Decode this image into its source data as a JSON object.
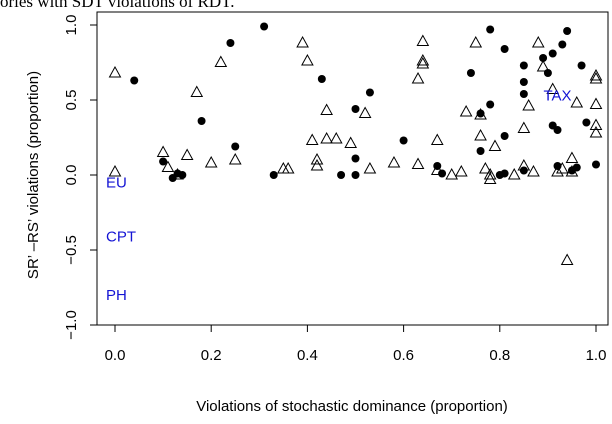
{
  "caption": "ories with SDT violations of RDT.",
  "chart_data": {
    "type": "scatter",
    "title": "",
    "xlabel": "Violations of stochastic dominance (proportion)",
    "ylabel": "SR’ –RS’ violations (proportion)",
    "xlim": [
      0,
      1
    ],
    "ylim": [
      -1,
      1
    ],
    "x_ticks": [
      "0.0",
      "0.2",
      "0.4",
      "0.6",
      "0.8",
      "1.0"
    ],
    "y_ticks": [
      "−1.0",
      "−0.5",
      "0.0",
      "0.5",
      "1.0"
    ],
    "grid": false,
    "legend": "none",
    "model_labels": [
      {
        "label": "TAX",
        "x": 0.92,
        "y": 0.53
      },
      {
        "label": "EU",
        "x": 0.02,
        "y": -0.05
      },
      {
        "label": "CPT",
        "x": 0.02,
        "y": -0.41
      },
      {
        "label": "PH",
        "x": 0.02,
        "y": -0.8
      }
    ],
    "series": [
      {
        "marker": "filled-circle",
        "points": [
          [
            0.04,
            0.63
          ],
          [
            0.1,
            0.09
          ],
          [
            0.12,
            -0.02
          ],
          [
            0.13,
            0.01
          ],
          [
            0.14,
            0.0
          ],
          [
            0.18,
            0.36
          ],
          [
            0.24,
            0.88
          ],
          [
            0.25,
            0.19
          ],
          [
            0.31,
            0.99
          ],
          [
            0.33,
            0.0
          ],
          [
            0.43,
            0.64
          ],
          [
            0.47,
            0.0
          ],
          [
            0.5,
            0.11
          ],
          [
            0.5,
            0.44
          ],
          [
            0.5,
            0.0
          ],
          [
            0.53,
            0.55
          ],
          [
            0.6,
            0.23
          ],
          [
            0.67,
            0.06
          ],
          [
            0.68,
            0.01
          ],
          [
            0.74,
            0.68
          ],
          [
            0.76,
            0.41
          ],
          [
            0.76,
            0.16
          ],
          [
            0.78,
            0.47
          ],
          [
            0.78,
            0.97
          ],
          [
            0.8,
            0.0
          ],
          [
            0.81,
            0.01
          ],
          [
            0.81,
            0.26
          ],
          [
            0.81,
            0.84
          ],
          [
            0.85,
            0.03
          ],
          [
            0.85,
            0.62
          ],
          [
            0.85,
            0.54
          ],
          [
            0.85,
            0.73
          ],
          [
            0.89,
            0.78
          ],
          [
            0.9,
            0.68
          ],
          [
            0.91,
            0.81
          ],
          [
            0.91,
            0.33
          ],
          [
            0.92,
            0.06
          ],
          [
            0.92,
            0.3
          ],
          [
            0.93,
            0.87
          ],
          [
            0.94,
            0.96
          ],
          [
            0.95,
            0.03
          ],
          [
            0.96,
            0.05
          ],
          [
            0.97,
            0.73
          ],
          [
            0.98,
            0.35
          ],
          [
            1.0,
            0.07
          ]
        ]
      },
      {
        "marker": "open-triangle",
        "points": [
          [
            0.0,
            0.68
          ],
          [
            0.0,
            0.02
          ],
          [
            0.1,
            0.15
          ],
          [
            0.11,
            0.05
          ],
          [
            0.13,
            0.0
          ],
          [
            0.15,
            0.13
          ],
          [
            0.17,
            0.55
          ],
          [
            0.2,
            0.08
          ],
          [
            0.22,
            0.75
          ],
          [
            0.25,
            0.1
          ],
          [
            0.35,
            0.04
          ],
          [
            0.36,
            0.04
          ],
          [
            0.39,
            0.88
          ],
          [
            0.4,
            0.76
          ],
          [
            0.41,
            0.23
          ],
          [
            0.42,
            0.1
          ],
          [
            0.42,
            0.06
          ],
          [
            0.44,
            0.24
          ],
          [
            0.44,
            0.43
          ],
          [
            0.46,
            0.24
          ],
          [
            0.49,
            0.21
          ],
          [
            0.52,
            0.41
          ],
          [
            0.53,
            0.04
          ],
          [
            0.58,
            0.08
          ],
          [
            0.63,
            0.64
          ],
          [
            0.63,
            0.07
          ],
          [
            0.64,
            0.89
          ],
          [
            0.64,
            0.74
          ],
          [
            0.64,
            0.76
          ],
          [
            0.67,
            0.23
          ],
          [
            0.67,
            0.03
          ],
          [
            0.7,
            0.0
          ],
          [
            0.72,
            0.02
          ],
          [
            0.73,
            0.42
          ],
          [
            0.75,
            0.88
          ],
          [
            0.76,
            0.4
          ],
          [
            0.76,
            0.26
          ],
          [
            0.77,
            0.04
          ],
          [
            0.78,
            0.0
          ],
          [
            0.78,
            -0.03
          ],
          [
            0.79,
            0.19
          ],
          [
            0.83,
            0.0
          ],
          [
            0.85,
            0.31
          ],
          [
            0.85,
            0.06
          ],
          [
            0.86,
            0.46
          ],
          [
            0.87,
            0.02
          ],
          [
            0.88,
            0.88
          ],
          [
            0.89,
            0.72
          ],
          [
            0.91,
            0.57
          ],
          [
            0.92,
            0.02
          ],
          [
            0.93,
            0.04
          ],
          [
            0.94,
            -0.57
          ],
          [
            0.95,
            0.11
          ],
          [
            0.95,
            0.02
          ],
          [
            0.96,
            0.48
          ],
          [
            1.0,
            0.66
          ],
          [
            1.0,
            0.64
          ],
          [
            1.0,
            0.47
          ],
          [
            1.0,
            0.33
          ],
          [
            1.0,
            0.28
          ]
        ]
      }
    ]
  },
  "colors": {
    "model_label": "#1414d4",
    "axis": "#000000",
    "marker": "#000000"
  }
}
